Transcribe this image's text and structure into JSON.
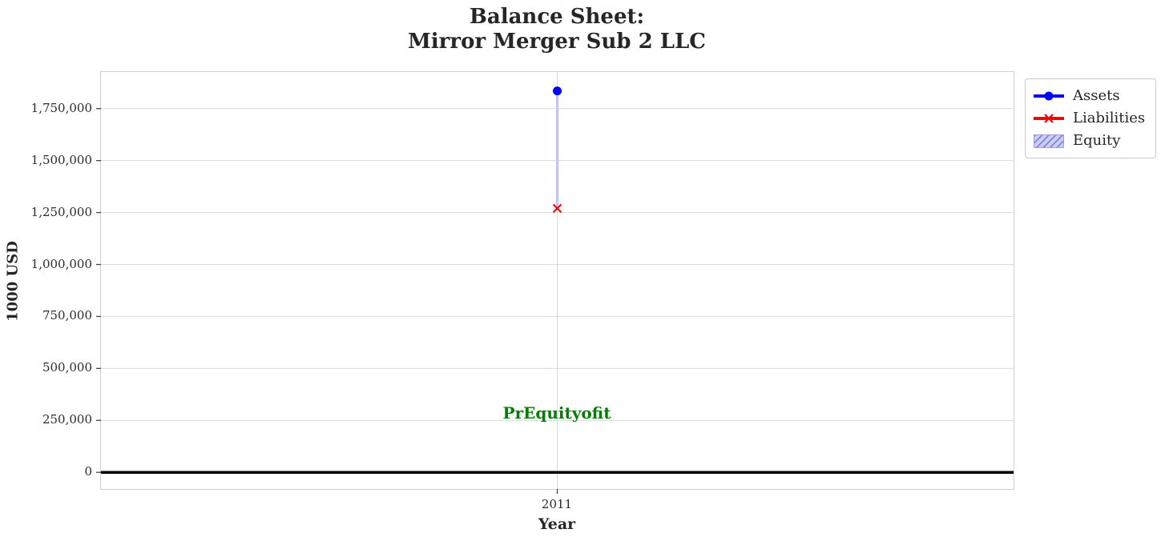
{
  "chart_data": {
    "type": "mixed",
    "title": "Balance Sheet:\nMirror Merger Sub 2 LLC",
    "xlabel": "Year",
    "ylabel": "1000 USD",
    "x": [
      2011
    ],
    "xtick_labels": [
      "2011"
    ],
    "yticks": [
      0,
      250000,
      500000,
      750000,
      1000000,
      1250000,
      1500000,
      1750000
    ],
    "ytick_labels": [
      "0",
      "250,000",
      "500,000",
      "750,000",
      "1,000,000",
      "1,250,000",
      "1,500,000",
      "1,750,000"
    ],
    "ylim": [
      -80000,
      1926000
    ],
    "grid": true,
    "legend_position": "upper-right-outside",
    "series": [
      {
        "name": "Assets",
        "type": "line",
        "marker": "circle",
        "color": "#0000ff",
        "values": [
          1835000
        ]
      },
      {
        "name": "Liabilities",
        "type": "line",
        "marker": "x",
        "color": "#ff0000",
        "values": [
          1270000
        ]
      },
      {
        "name": "Equity",
        "type": "bar",
        "color": "#ccccff",
        "edge_color": "#9f9fe0",
        "hatch": "///",
        "bar_bottom": [
          1270000
        ],
        "values": [
          565000
        ]
      }
    ],
    "annotation": {
      "text": "PrEquityofit",
      "color": "#008000",
      "x": 2011,
      "y": 287000
    },
    "zero_line_color": "#000000",
    "grid_color": "#d9d9d9",
    "tick_color": "#444444"
  }
}
